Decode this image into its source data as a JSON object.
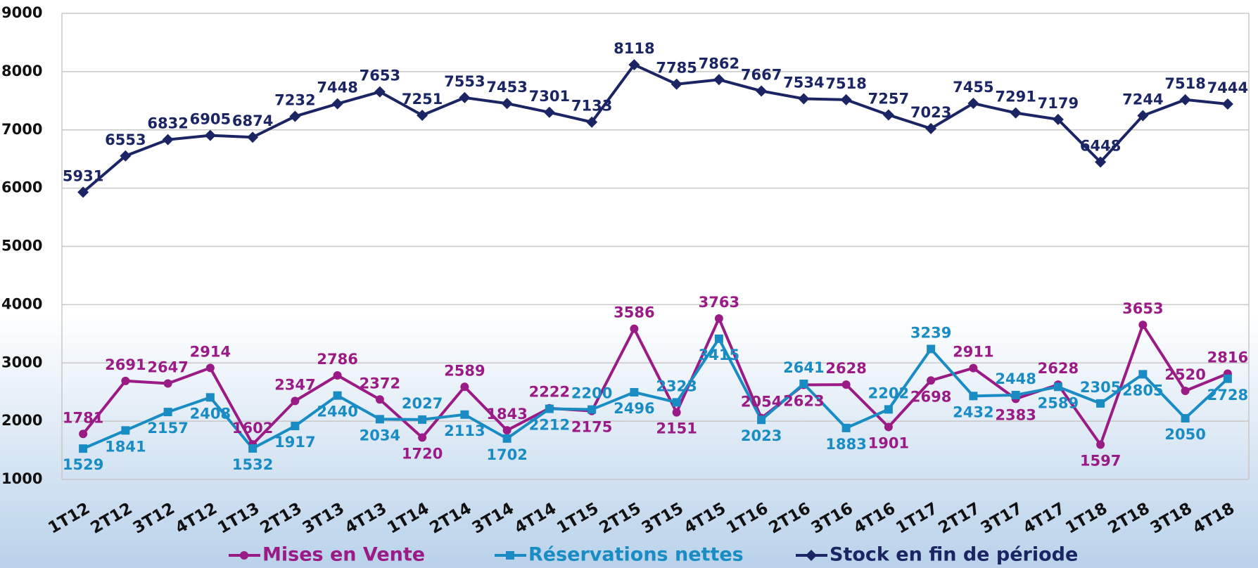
{
  "chart_data": {
    "type": "line",
    "categories": [
      "1T12",
      "2T12",
      "3T12",
      "4T12",
      "1T13",
      "2T13",
      "3T13",
      "4T13",
      "1T14",
      "2T14",
      "3T14",
      "4T14",
      "1T15",
      "2T15",
      "3T15",
      "4T15",
      "1T16",
      "2T16",
      "3T16",
      "4T16",
      "1T17",
      "2T17",
      "3T17",
      "4T17",
      "1T18",
      "2T18",
      "3T18",
      "4T18"
    ],
    "series": [
      {
        "name": "Mises en Vente",
        "color": "#9b1b86",
        "marker": "circle",
        "values": [
          1781,
          2691,
          2647,
          2914,
          1602,
          2347,
          2786,
          2372,
          1720,
          2589,
          1843,
          2222,
          2175,
          3586,
          2151,
          3763,
          2054,
          2623,
          2628,
          1901,
          2698,
          2911,
          2383,
          2628,
          1597,
          3653,
          2520,
          2816
        ]
      },
      {
        "name": "Réservations nettes",
        "color": "#1a8cc4",
        "marker": "square",
        "values": [
          1529,
          1841,
          2157,
          2408,
          1532,
          1917,
          2440,
          2034,
          2027,
          2113,
          1702,
          2212,
          2200,
          2496,
          2323,
          3415,
          2023,
          2641,
          1883,
          2202,
          3239,
          2432,
          2448,
          2589,
          2305,
          2805,
          2050,
          2728
        ]
      },
      {
        "name": "Stock en fin de période",
        "color": "#1b2563",
        "marker": "diamond",
        "values": [
          5931,
          6553,
          6832,
          6905,
          6874,
          7232,
          7448,
          7653,
          7251,
          7553,
          7453,
          7301,
          7133,
          8118,
          7785,
          7862,
          7667,
          7534,
          7518,
          7257,
          7023,
          7455,
          7291,
          7179,
          6448,
          7244,
          7518,
          7444
        ]
      }
    ],
    "ylim": [
      1000,
      9000
    ],
    "yticks": [
      1000,
      2000,
      3000,
      4000,
      5000,
      6000,
      7000,
      8000,
      9000
    ],
    "grid": true
  }
}
